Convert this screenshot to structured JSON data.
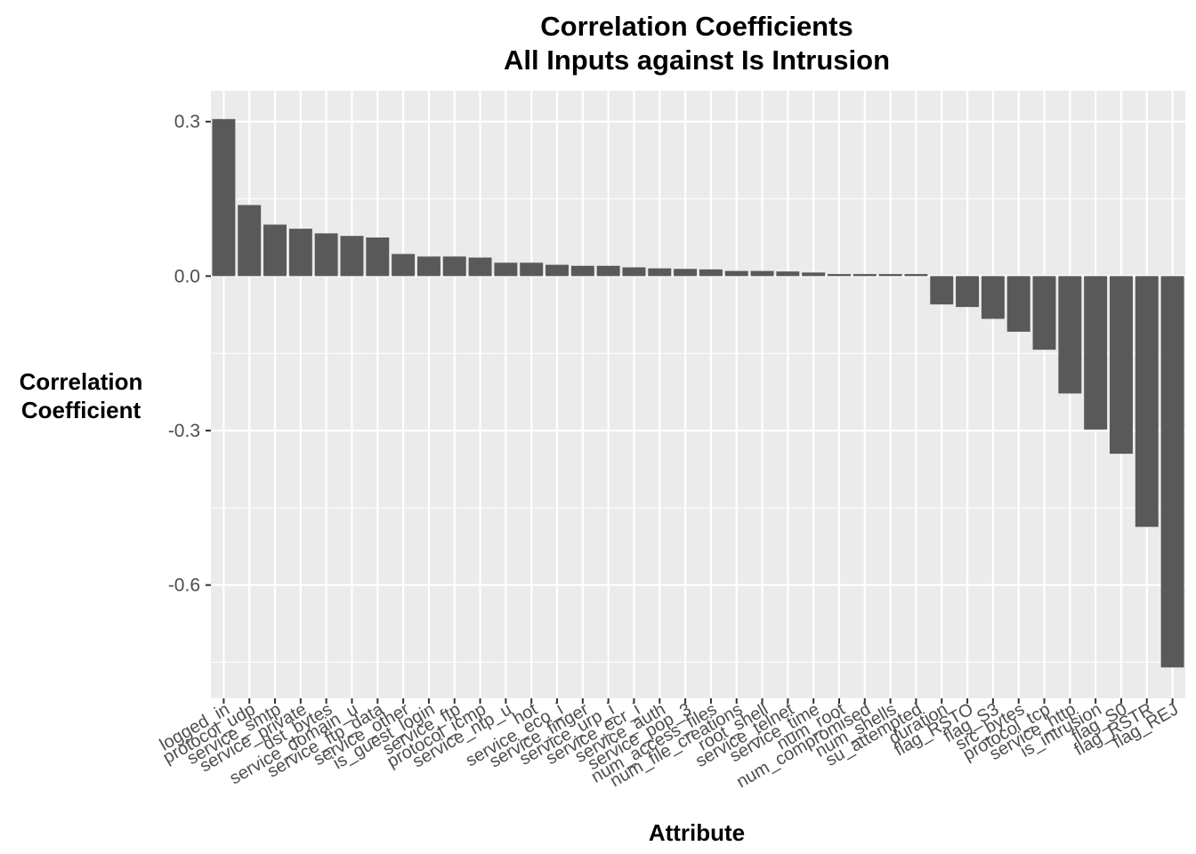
{
  "chart_data": {
    "type": "bar",
    "title": "Correlation Coefficients",
    "subtitle": "All Inputs against Is Intrusion",
    "xlabel": "Attribute",
    "ylabel": [
      "Correlation",
      "Coefficient"
    ],
    "ylim": [
      -0.82,
      0.36
    ],
    "yticks": [
      -0.6,
      -0.3,
      0.0,
      0.3
    ],
    "ytick_labels": [
      "-0.6",
      "-0.3",
      "0.0",
      "0.3"
    ],
    "grid": true,
    "bar_color": "#595959",
    "panel_color": "#ebebeb",
    "categories": [
      "logged_in",
      "protocol_udp",
      "service_smtp",
      "service_private",
      "dst_bytes",
      "service_domain_u",
      "service_ftp_data",
      "service_other",
      "is_guest_login",
      "service_ftp",
      "protocol_icmp",
      "service_ntp_u",
      "hot",
      "service_eco_i",
      "service_finger",
      "service_urp_i",
      "service_ecr_i",
      "service_auth",
      "service_pop_3",
      "num_access_files",
      "num_file_creations",
      "root_shell",
      "service_telnet",
      "service_time",
      "num_root",
      "num_compromised",
      "num_shells",
      "su_attempted",
      "duration",
      "flag_RSTO",
      "flag_S3",
      "src_bytes",
      "protocol_tcp",
      "service_http",
      "is_intrusion",
      "flag_S0",
      "flag_RSTR",
      "flag_REJ"
    ],
    "values": [
      0.305,
      0.138,
      0.1,
      0.092,
      0.083,
      0.078,
      0.075,
      0.043,
      0.038,
      0.038,
      0.036,
      0.026,
      0.026,
      0.022,
      0.02,
      0.02,
      0.017,
      0.015,
      0.014,
      0.013,
      0.01,
      0.01,
      0.009,
      0.007,
      0.004,
      0.004,
      0.004,
      0.004,
      -0.055,
      -0.06,
      -0.083,
      -0.108,
      -0.143,
      -0.228,
      -0.298,
      -0.345,
      -0.487,
      -0.76
    ]
  }
}
